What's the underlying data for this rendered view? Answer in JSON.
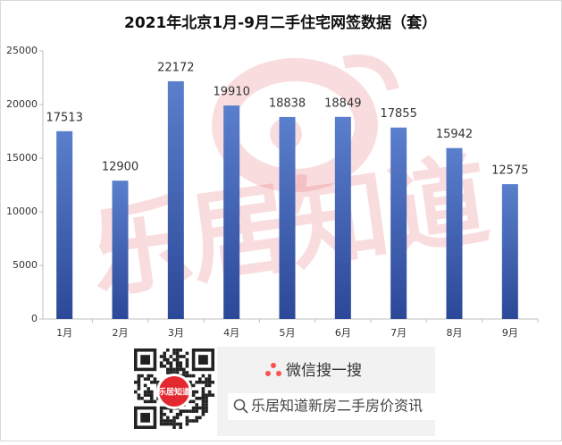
{
  "chart_data": {
    "type": "bar",
    "title": "2021年北京1月-9月二手住宅网签数据（套）",
    "categories": [
      "1月",
      "2月",
      "3月",
      "4月",
      "5月",
      "6月",
      "7月",
      "8月",
      "9月"
    ],
    "values": [
      17513,
      12900,
      22172,
      19910,
      18838,
      18849,
      17855,
      15942,
      12575
    ],
    "color": "#3f62b4",
    "ylim": [
      0,
      25000
    ],
    "yticks": [
      0,
      5000,
      10000,
      15000,
      20000,
      25000
    ],
    "grid": false
  },
  "watermark": "乐居知道",
  "footer": {
    "qr_logo": "乐居知道",
    "search_title": "微信搜一搜",
    "search_query": "乐居知道新房二手房价资讯"
  }
}
